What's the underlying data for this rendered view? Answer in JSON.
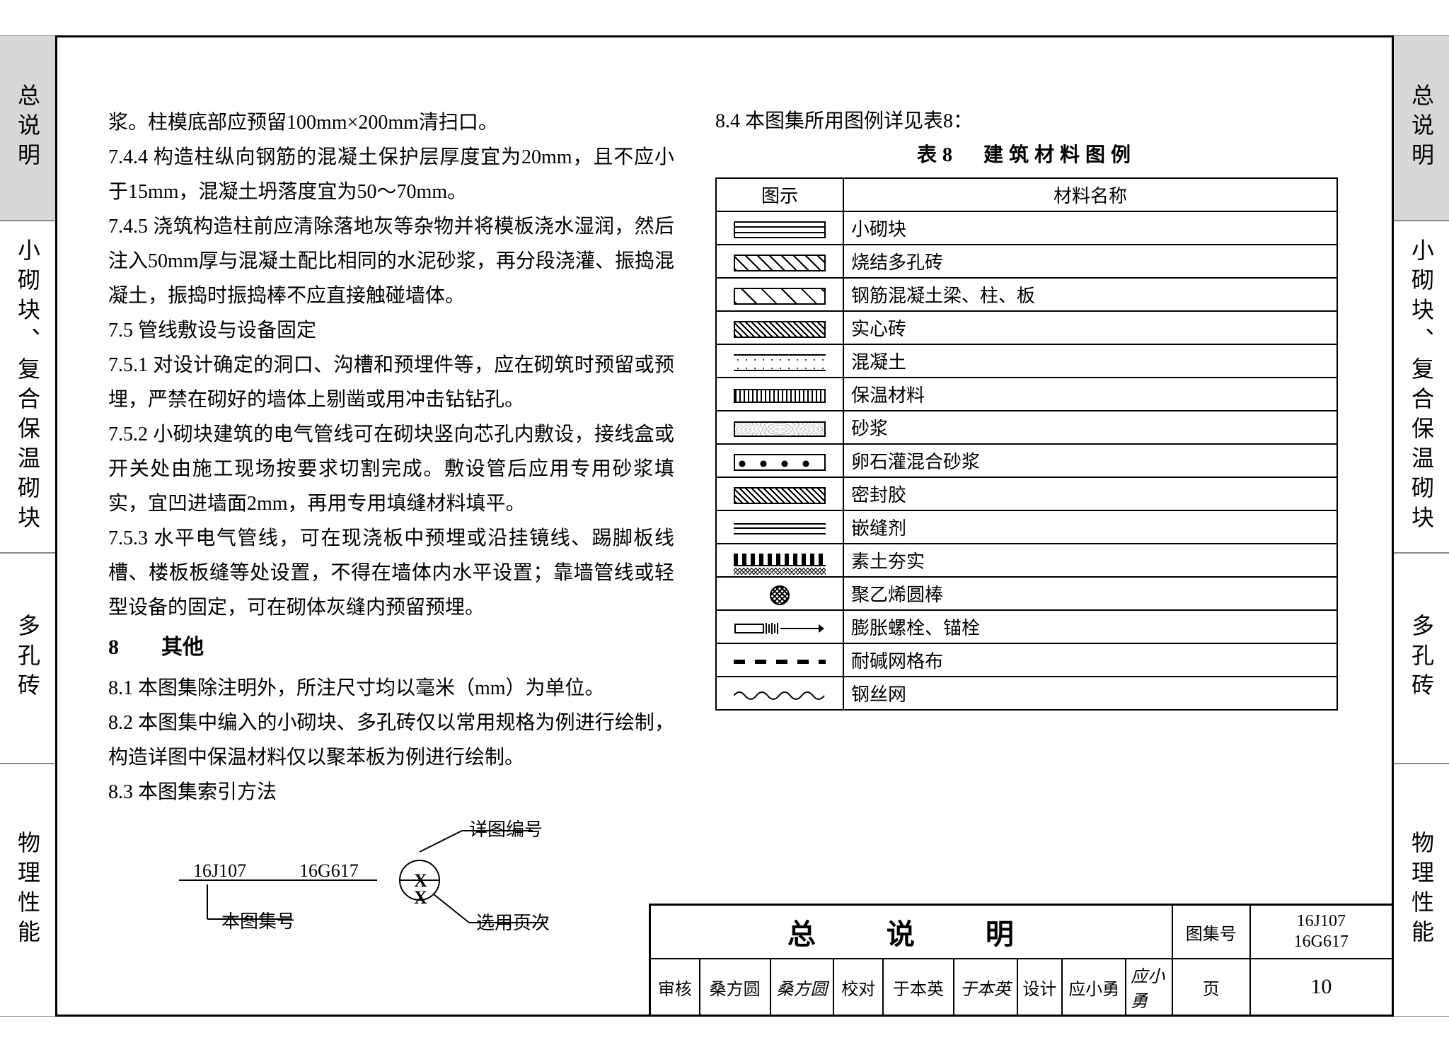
{
  "side_tabs": {
    "t1": "总说明",
    "t2": "小砌块、复合保温砌块",
    "t3": "多孔砖",
    "t4": "物理性能"
  },
  "left_text": {
    "p1": "浆。柱模底部应预留100mm×200mm清扫口。",
    "p2": "7.4.4 构造柱纵向钢筋的混凝土保护层厚度宜为20mm，且不应小于15mm，混凝土坍落度宜为50～70mm。",
    "p3": "7.4.5 浇筑构造柱前应清除落地灰等杂物并将模板浇水湿润，然后注入50mm厚与混凝土配比相同的水泥砂浆，再分段浇灌、振捣混凝土，振捣时振捣棒不应直接触碰墙体。",
    "h75": "7.5 管线敷设与设备固定",
    "p4": "7.5.1 对设计确定的洞口、沟槽和预埋件等，应在砌筑时预留或预埋，严禁在砌好的墙体上剔凿或用冲击钻钻孔。",
    "p5": "7.5.2 小砌块建筑的电气管线可在砌块竖向芯孔内敷设，接线盒或开关处由施工现场按要求切割完成。敷设管后应用专用砂浆填实，宜凹进墙面2mm，再用专用填缝材料填平。",
    "p6": "7.5.3 水平电气管线，可在现浇板中预埋或沿挂镜线、踢脚板线槽、楼板板缝等处设置，不得在墙体内水平设置；靠墙管线或轻型设备的固定，可在砌体灰缝内预留预埋。",
    "h8": "8　　其他",
    "p7": "8.1 本图集除注明外，所注尺寸均以毫米（mm）为单位。",
    "p8": "8.2 本图集中编入的小砌块、多孔砖仅以常用规格为例进行绘制，构造详图中保温材料仅以聚苯板为例进行绘制。",
    "p9": "8.3 本图集索引方法"
  },
  "index_diagram": {
    "code1": "16J107",
    "code2": "16G617",
    "label_detail": "详图编号",
    "label_atlas": "本图集号",
    "label_page": "选用页次",
    "x": "X"
  },
  "right_col": {
    "heading": "8.4 本图集所用图例详见表8：",
    "table_title": "表8　建筑材料图例",
    "th1": "图示",
    "th2": "材料名称"
  },
  "materials": [
    "小砌块",
    "烧结多孔砖",
    "钢筋混凝土梁、柱、板",
    "实心砖",
    "混凝土",
    "保温材料",
    "砂浆",
    "卵石灌混合砂浆",
    "密封胶",
    "嵌缝剂",
    "素土夯实",
    "聚乙烯圆棒",
    "膨胀螺栓、锚栓",
    "耐碱网格布",
    "钢丝网"
  ],
  "titleblock": {
    "main": "总　说　明",
    "atlas_label": "图集号",
    "atlas_no1": "16J107",
    "atlas_no2": "16G617",
    "audit": "审核",
    "audit_name": "桑方圆",
    "audit_sig": "桑方圆",
    "check": "校对",
    "check_name": "于本英",
    "check_sig": "于本英",
    "design": "设计",
    "design_name": "应小勇",
    "design_sig": "应小勇",
    "page_label": "页",
    "page_no": "10"
  }
}
